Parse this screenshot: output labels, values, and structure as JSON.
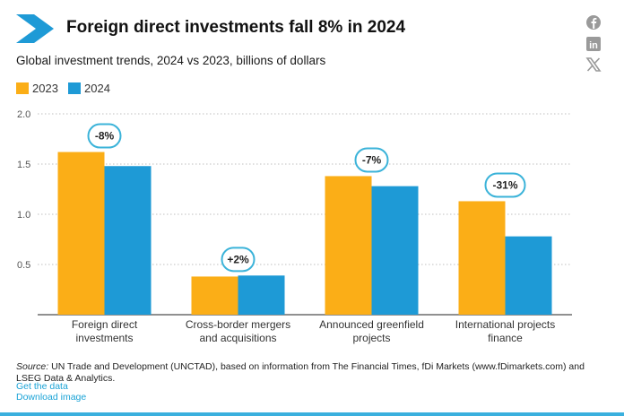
{
  "header": {
    "title": "Foreign direct investments fall 8% in 2024",
    "subtitle": "Global investment trends, 2024 vs 2023, billions of dollars"
  },
  "social": [
    {
      "name": "facebook-icon"
    },
    {
      "name": "linkedin-icon",
      "text": "in"
    },
    {
      "name": "x-icon"
    }
  ],
  "legend": [
    {
      "label": "2023",
      "color": "#FBAE17"
    },
    {
      "label": "2024",
      "color": "#1E9AD6"
    }
  ],
  "chart_data": {
    "type": "bar",
    "categories": [
      [
        "Foreign direct",
        "investments"
      ],
      [
        "Cross-border mergers",
        "and acquisitions"
      ],
      [
        "Announced greenfield",
        "projects"
      ],
      [
        "International projects",
        "finance"
      ]
    ],
    "series": [
      {
        "name": "2023",
        "color": "#FBAE17",
        "values": [
          1.62,
          0.38,
          1.38,
          1.13
        ]
      },
      {
        "name": "2024",
        "color": "#1E9AD6",
        "values": [
          1.48,
          0.39,
          1.28,
          0.78
        ]
      }
    ],
    "annotations": [
      "-8%",
      "+2%",
      "-7%",
      "-31%"
    ],
    "ylim": [
      0,
      2.0
    ],
    "yticks": [
      "2.0",
      "1.5",
      "1.0",
      "0.5"
    ],
    "ytick_values": [
      2.0,
      1.5,
      1.0,
      0.5
    ],
    "grid": true,
    "legend_position": "top-left",
    "annotation_color": "#3BB3D9",
    "grid_color": "#bfbfbf"
  },
  "footer": {
    "source_label": "Source:",
    "source_text": " UN Trade and Development (UNCTAD), based on information from The Financial Times, fDi Markets (www.fDimarkets.com) and LSEG Data & Analytics.",
    "get_data": "Get the data",
    "download_image": "Download image"
  },
  "colors": {
    "accent": "#1AA3D6",
    "bottom_rule": "#3AB0DE"
  }
}
